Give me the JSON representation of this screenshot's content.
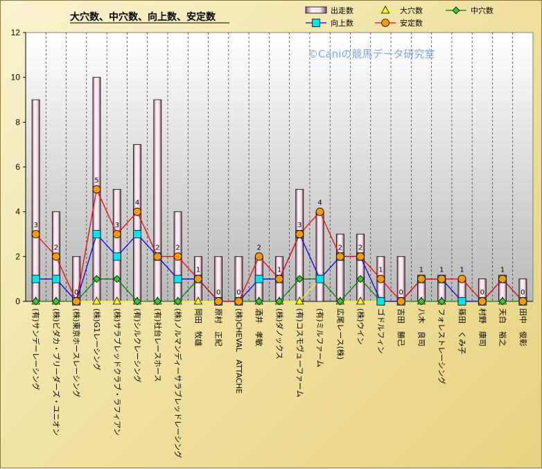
{
  "chart_data": {
    "type": "bar",
    "title": "大穴数、中穴数、向上数、安定数",
    "watermark": "©Caniの競馬データ研究室",
    "ylim": [
      0,
      12
    ],
    "yticks": [
      0,
      2,
      4,
      6,
      8,
      10,
      12
    ],
    "categories": [
      "(有)サンデーレーシング",
      "(株)ビダカ・ブリーダーズ・ユニオン",
      "(株)東京ホースレーシング",
      "(株)G1レーシング",
      "(株)サラブレッドクラブ・ラフィアン",
      "(有)シルクレーシング",
      "(有)社台レースホース",
      "(株)ノルマンディーサラブレッドレーシング",
      "岡田　牧雄",
      "原村　正紀",
      "(株)CHEVAL　ATTACHE",
      "酒井　孝敏",
      "(株)ダノックス",
      "(有)コスモヴューファーム",
      "(有)ミルファーム",
      "広尾レース(株)",
      "(株)ウイン",
      "ゴドルフィン",
      "吉田　勝己",
      "八木　良司",
      "フォレストレーシング",
      "篠田　くみ子",
      "村野　康司",
      "天白　裕之",
      "田中　俊彰"
    ],
    "legend_position": "top",
    "series": [
      {
        "name": "出走数",
        "type": "bar",
        "color": "#f2e6ee",
        "values": [
          9,
          4,
          2,
          10,
          5,
          7,
          9,
          4,
          2,
          2,
          2,
          2,
          2,
          5,
          4,
          3,
          3,
          2,
          2,
          1,
          1,
          1,
          1,
          1,
          1
        ]
      },
      {
        "name": "大穴数",
        "type": "line",
        "color": "#ffff00",
        "marker": "triangle",
        "values": [
          0,
          0,
          0,
          0,
          0,
          0,
          0,
          0,
          0,
          0,
          0,
          0,
          0,
          0,
          1,
          0,
          0,
          0,
          0,
          0,
          0,
          0,
          0,
          0,
          0
        ]
      },
      {
        "name": "中穴数",
        "type": "line",
        "color": "#008000",
        "marker": "diamond",
        "values": [
          0,
          0,
          0,
          1,
          1,
          0,
          0,
          0,
          1,
          0,
          0,
          0,
          0,
          1,
          1,
          0,
          1,
          0,
          0,
          0,
          0,
          0,
          0,
          0,
          0
        ]
      },
      {
        "name": "向上数",
        "type": "line",
        "color": "#0000ff",
        "marker": "square",
        "values": [
          1,
          1,
          0,
          3,
          2,
          3,
          2,
          1,
          1,
          0,
          0,
          1,
          1,
          3,
          1,
          2,
          2,
          0,
          0,
          1,
          1,
          0,
          0,
          1,
          0
        ]
      },
      {
        "name": "安定数",
        "type": "line",
        "color": "#ff0000",
        "marker": "circle",
        "values": [
          3,
          2,
          0,
          5,
          3,
          4,
          2,
          2,
          1,
          0,
          0,
          2,
          1,
          3,
          4,
          2,
          2,
          1,
          0,
          1,
          1,
          1,
          0,
          1,
          0
        ]
      }
    ]
  }
}
